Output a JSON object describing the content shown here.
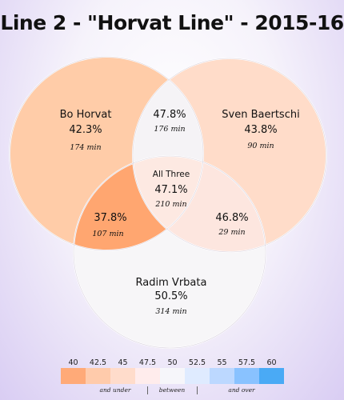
{
  "title": "Line 2 - \"Horvat Line\" - 2015-16",
  "regions": {
    "horvat": {
      "name": "Bo Horvat",
      "pct": "42.3%",
      "min": "174 min",
      "value": 42.3,
      "color": "#ffcca8"
    },
    "baertschi": {
      "name": "Sven Baertschi",
      "pct": "43.8%",
      "min": "90 min",
      "value": 43.8,
      "color": "#ffdcc9"
    },
    "vrbata": {
      "name": "Radim Vrbata",
      "pct": "50.5%",
      "min": "314 min",
      "value": 50.5,
      "color": "#f7f6f8"
    },
    "horvat_baertschi": {
      "pct": "47.8%",
      "min": "176 min",
      "value": 47.8,
      "color": "#f5f3f6"
    },
    "horvat_vrbata": {
      "pct": "37.8%",
      "min": "107 min",
      "value": 37.8,
      "color": "#ffa670"
    },
    "baertschi_vrbata": {
      "pct": "46.8%",
      "min": "29 min",
      "value": 46.8,
      "color": "#fde6df"
    },
    "all_three": {
      "name": "All Three",
      "pct": "47.1%",
      "min": "210 min",
      "value": 47.1,
      "color": "#fde9e2"
    }
  },
  "legend": {
    "ticks": [
      "40",
      "42.5",
      "45",
      "47.5",
      "50",
      "52.5",
      "55",
      "57.5",
      "60"
    ],
    "colors": [
      "#ffaa78",
      "#ffcbab",
      "#ffdccb",
      "#ffecec",
      "#f6f6fa",
      "#dfebff",
      "#bcd8ff",
      "#89c2ff",
      "#4aaaf5"
    ],
    "captions": [
      "and under",
      "between",
      "and over"
    ]
  }
}
